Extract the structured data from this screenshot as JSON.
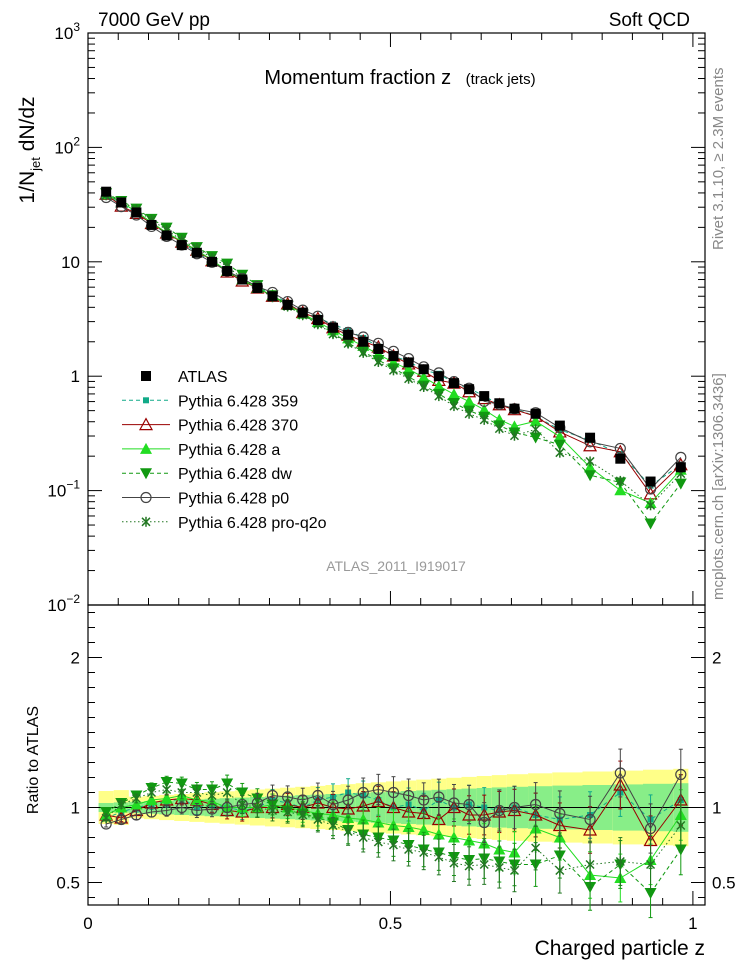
{
  "header": {
    "left": "7000 GeV pp",
    "right": "Soft QCD"
  },
  "side_text": {
    "rivet": "Rivet 3.1.10, ≥ 2.3M events",
    "source": "mcplots.cern.ch [arXiv:1306.3436]"
  },
  "chart_data": [
    {
      "type": "scatter",
      "panel": "main",
      "title": "Momentum fraction z",
      "subtitle": "(track jets)",
      "analysis_tag": "ATLAS_2011_I919017",
      "ylabel_main": "1/N",
      "ylabel_sub": "jet",
      "ylabel_rest": " dN/dz",
      "ylog": true,
      "ylim": [
        0.01,
        1000
      ],
      "xlim": [
        0,
        1.02
      ],
      "y_tick_labels": [
        {
          "v": 1000,
          "base": "10",
          "exp": "3"
        },
        {
          "v": 100,
          "base": "10",
          "exp": "2"
        },
        {
          "v": 10,
          "base": "10",
          "exp": ""
        },
        {
          "v": 1,
          "base": "1",
          "exp": ""
        },
        {
          "v": 0.1,
          "base": "10",
          "exp": "−1"
        },
        {
          "v": 0.01,
          "base": "10",
          "exp": "−2"
        }
      ],
      "legend_position": "left",
      "x": [
        0.03,
        0.055,
        0.08,
        0.105,
        0.13,
        0.155,
        0.18,
        0.205,
        0.23,
        0.255,
        0.28,
        0.305,
        0.33,
        0.355,
        0.38,
        0.405,
        0.43,
        0.455,
        0.48,
        0.505,
        0.53,
        0.555,
        0.58,
        0.605,
        0.63,
        0.655,
        0.68,
        0.705,
        0.74,
        0.78,
        0.83,
        0.88,
        0.93,
        0.98
      ],
      "atlas": [
        41,
        33,
        27,
        21,
        17,
        14,
        12,
        10,
        8.3,
        7,
        5.9,
        5,
        4.2,
        3.6,
        3.1,
        2.65,
        2.3,
        2.0,
        1.73,
        1.5,
        1.32,
        1.15,
        1.0,
        0.87,
        0.77,
        0.67,
        0.58,
        0.52,
        0.47,
        0.37,
        0.29,
        0.19,
        0.12,
        0.16
      ],
      "series": [
        {
          "name": "ATLAS",
          "color": "#000000",
          "marker": "square",
          "line": "none",
          "ratio": [
            1,
            1,
            1,
            1,
            1,
            1,
            1,
            1,
            1,
            1,
            1,
            1,
            1,
            1,
            1,
            1,
            1,
            1,
            1,
            1,
            1,
            1,
            1,
            1,
            1,
            1,
            1,
            1,
            1,
            1,
            1,
            1,
            1,
            1
          ]
        },
        {
          "name": "Pythia 6.428 359",
          "color": "#11aa88",
          "marker": "smallsquare",
          "line": "dashed",
          "ratio": [
            0.93,
            0.97,
            1.0,
            1.02,
            1.04,
            1.06,
            1.0,
            1.02,
            1.0,
            0.98,
            1.0,
            1.05,
            1.03,
            1.0,
            1.05,
            1.07,
            1.1,
            1.08,
            1.05,
            1.0,
            1.02,
            0.98,
            1.05,
            1.0,
            1.02,
            1.0,
            0.98,
            1.0,
            0.95,
            0.92,
            0.95,
            1.1,
            0.92,
            1.05
          ]
        },
        {
          "name": "Pythia 6.428 370",
          "color": "#990000",
          "marker": "triangle",
          "line": "solid",
          "ratio": [
            0.95,
            0.93,
            0.98,
            1.03,
            1.05,
            1.06,
            1.05,
            1.02,
            0.98,
            0.97,
            1.0,
            1.0,
            1.02,
            1.0,
            1.03,
            1.0,
            0.99,
            1.01,
            1.04,
            1.0,
            0.97,
            0.96,
            0.92,
            1.0,
            0.95,
            0.95,
            0.97,
            0.98,
            0.95,
            0.88,
            0.85,
            1.15,
            0.78,
            1.05
          ]
        },
        {
          "name": "Pythia 6.428 a",
          "color": "#22dd22",
          "marker": "triangle-filled",
          "line": "solid",
          "ratio": [
            0.95,
            1.0,
            1.02,
            1.05,
            1.06,
            1.08,
            1.05,
            1.04,
            1.0,
            1.0,
            1.0,
            1.02,
            1.0,
            0.98,
            0.96,
            0.95,
            0.93,
            0.92,
            0.9,
            0.88,
            0.87,
            0.85,
            0.82,
            0.8,
            0.78,
            0.76,
            0.72,
            0.7,
            0.86,
            0.8,
            0.55,
            0.53,
            0.65,
            0.95
          ]
        },
        {
          "name": "Pythia 6.428 dw",
          "color": "#119911",
          "marker": "triangle-down",
          "line": "dashed",
          "ratio": [
            0.97,
            1.03,
            1.08,
            1.13,
            1.17,
            1.16,
            1.12,
            1.12,
            1.16,
            1.1,
            1.06,
            1.02,
            0.98,
            0.96,
            0.93,
            0.9,
            0.85,
            0.82,
            0.8,
            0.78,
            0.75,
            0.72,
            0.7,
            0.67,
            0.65,
            0.66,
            0.64,
            0.62,
            0.62,
            0.68,
            0.47,
            0.62,
            0.43,
            0.72
          ]
        },
        {
          "name": "Pythia 6.428 p0",
          "color": "#444444",
          "marker": "circle",
          "line": "solid",
          "ratio": [
            0.89,
            0.92,
            0.95,
            0.97,
            0.98,
            1.0,
            0.98,
            0.99,
            1.0,
            1.02,
            1.03,
            1.08,
            1.07,
            1.05,
            1.08,
            1.02,
            1.05,
            1.1,
            1.12,
            1.1,
            1.08,
            1.05,
            1.07,
            1.03,
            1.02,
            0.9,
            0.98,
            1.0,
            1.02,
            0.96,
            0.92,
            1.23,
            0.86,
            1.22
          ]
        },
        {
          "name": "Pythia 6.428 pro-q2o",
          "color": "#227722",
          "marker": "star",
          "line": "dotted",
          "ratio": [
            0.93,
            1.02,
            1.06,
            1.1,
            1.12,
            1.1,
            1.1,
            1.08,
            1.1,
            1.02,
            1.0,
            0.98,
            0.97,
            0.95,
            0.92,
            0.88,
            0.84,
            0.8,
            0.77,
            0.75,
            0.72,
            0.7,
            0.67,
            0.63,
            0.61,
            0.62,
            0.6,
            0.58,
            0.73,
            0.58,
            0.62,
            0.64,
            0.62,
            0.88
          ]
        }
      ]
    },
    {
      "type": "scatter",
      "panel": "ratio",
      "ylabel": "Ratio to ATLAS",
      "xlabel": "Charged particle z",
      "ylim": [
        0.35,
        2.35
      ],
      "y_ticks": [
        "2",
        "1",
        "0.5"
      ],
      "x_ticks": [
        "0",
        "0.5",
        "1"
      ],
      "band_colors": {
        "stat": "#88ee88",
        "syst": "#ffff88"
      }
    }
  ]
}
